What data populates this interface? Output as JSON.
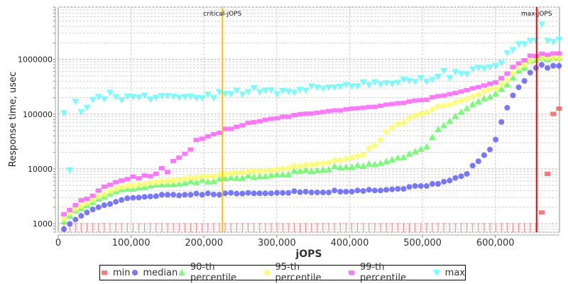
{
  "chart_data": {
    "type": "scatter",
    "xlabel": "jOPS",
    "ylabel": "Response time, usec",
    "yscale": "log",
    "xlim": [
      0,
      688000
    ],
    "ylim": [
      700,
      9000000
    ],
    "x_ticks": [
      0,
      100000,
      200000,
      300000,
      400000,
      500000,
      600000
    ],
    "x_tick_labels": [
      "0",
      "100,000",
      "200,000",
      "300,000",
      "400,000",
      "500,000",
      "600,000"
    ],
    "y_ticks": [
      1000,
      10000,
      100000,
      1000000
    ],
    "y_tick_labels": [
      "1000",
      "10000",
      "100000",
      "1000000"
    ],
    "grid": true,
    "legend_position": "bottom",
    "annotations": [
      {
        "label": "critical-jOPS",
        "x": 225400,
        "color": "#ffc000"
      },
      {
        "label": "max-jOPS",
        "x": 656600,
        "color": "#ff0000"
      }
    ],
    "x": [
      7900,
      15800,
      23700,
      31600,
      39500,
      47400,
      55300,
      63200,
      71100,
      79000,
      86900,
      94800,
      102700,
      110600,
      118500,
      126400,
      134300,
      142200,
      150100,
      158000,
      165900,
      173800,
      181700,
      189600,
      197500,
      205400,
      213300,
      221200,
      229100,
      237000,
      244900,
      252800,
      260700,
      268600,
      276500,
      284400,
      292300,
      300200,
      308100,
      316000,
      323900,
      331800,
      339700,
      347600,
      355500,
      363400,
      371300,
      379200,
      387100,
      395000,
      402900,
      410800,
      418700,
      426600,
      434500,
      442400,
      450300,
      458200,
      466100,
      474000,
      481900,
      489800,
      497700,
      505600,
      513500,
      521400,
      529300,
      537200,
      545100,
      553000,
      560900,
      568800,
      576700,
      584600,
      592500,
      600400,
      608300,
      616200,
      624100,
      632000,
      639900,
      647800,
      655700,
      663600,
      671500,
      679400,
      687300
    ],
    "series": [
      {
        "name": "min",
        "color": "#ff5555",
        "marker": "square",
        "note_below_axis": "values below axis range drawn as ticks",
        "values": [
          null,
          null,
          null,
          null,
          null,
          null,
          null,
          null,
          null,
          null,
          null,
          null,
          null,
          null,
          null,
          null,
          null,
          null,
          null,
          null,
          null,
          null,
          null,
          null,
          null,
          null,
          null,
          null,
          null,
          null,
          null,
          null,
          null,
          null,
          null,
          null,
          null,
          null,
          null,
          null,
          null,
          null,
          null,
          null,
          null,
          null,
          null,
          null,
          null,
          null,
          null,
          null,
          null,
          null,
          null,
          null,
          null,
          null,
          null,
          null,
          null,
          null,
          null,
          null,
          null,
          null,
          null,
          null,
          null,
          null,
          null,
          null,
          null,
          null,
          null,
          null,
          null,
          null,
          null,
          null,
          null,
          null,
          null,
          1600,
          8100,
          101000,
          126000
        ]
      },
      {
        "name": "median",
        "color": "#5555ff",
        "marker": "circle",
        "values": [
          794,
          990,
          1190,
          1390,
          1600,
          1820,
          1990,
          2180,
          2290,
          2510,
          2710,
          2910,
          2970,
          3000,
          3090,
          3140,
          3180,
          3380,
          3380,
          3380,
          3280,
          3380,
          3380,
          3540,
          3380,
          3580,
          3420,
          3380,
          3580,
          3650,
          3540,
          3540,
          3650,
          3580,
          3580,
          3580,
          3580,
          3650,
          3650,
          3650,
          3920,
          3760,
          3840,
          3720,
          3720,
          3720,
          3720,
          4040,
          3840,
          3840,
          3840,
          4040,
          3960,
          4160,
          4040,
          4040,
          4160,
          4240,
          4330,
          4330,
          4700,
          4880,
          4880,
          4880,
          5330,
          5330,
          5840,
          6140,
          6850,
          7350,
          8110,
          11500,
          13800,
          17800,
          22600,
          34400,
          71900,
          131000,
          220000,
          309000,
          404000,
          572000,
          698000,
          795000,
          698000,
          764000,
          760000
        ]
      },
      {
        "name": "90-th percentile",
        "color": "#55ff55",
        "marker": "triangle-up",
        "values": [
          1100,
          1390,
          1730,
          1910,
          2180,
          2480,
          2850,
          3140,
          3540,
          3920,
          4240,
          4330,
          4330,
          4590,
          4700,
          4920,
          5180,
          5180,
          5280,
          5280,
          5380,
          5600,
          6000,
          5720,
          6330,
          5840,
          6000,
          6640,
          6780,
          6980,
          6850,
          6850,
          7570,
          7130,
          7350,
          7350,
          7710,
          7940,
          7940,
          7940,
          9220,
          9220,
          9600,
          9140,
          9400,
          9600,
          9800,
          11200,
          10600,
          10900,
          10900,
          11700,
          11300,
          12400,
          12200,
          12700,
          13800,
          14800,
          16000,
          16300,
          18900,
          20900,
          23100,
          25500,
          38000,
          52800,
          62500,
          74800,
          91400,
          110000,
          128000,
          152000,
          170000,
          193000,
          207000,
          236000,
          288000,
          349000,
          469000,
          620000,
          713000,
          942000,
          980000,
          1070000,
          1000000,
          1070000,
          1070000
        ]
      },
      {
        "name": "95-th percentile",
        "color": "#ffff55",
        "marker": "diamond",
        "values": [
          1240,
          1570,
          1870,
          2110,
          2400,
          2770,
          3140,
          3470,
          3920,
          4330,
          4700,
          4920,
          4920,
          5180,
          5330,
          5610,
          5720,
          6000,
          6000,
          6200,
          6330,
          6640,
          6980,
          6850,
          7200,
          7200,
          7200,
          7940,
          8110,
          8280,
          8530,
          8530,
          8950,
          8950,
          9140,
          9220,
          9400,
          9900,
          10100,
          10400,
          11300,
          11300,
          11900,
          11900,
          12400,
          12700,
          13100,
          14300,
          14300,
          15200,
          16000,
          17100,
          18000,
          23800,
          26800,
          33800,
          47400,
          56700,
          65200,
          70400,
          84300,
          93300,
          101000,
          108000,
          123000,
          139000,
          143000,
          149000,
          163000,
          177000,
          191000,
          211000,
          229000,
          261000,
          285000,
          294000,
          349000,
          416000,
          561000,
          713000,
          803000,
          942000,
          1070000,
          1070000,
          1070000,
          1070000,
          1070000
        ]
      },
      {
        "name": "99-th percentile",
        "color": "#ff55ff",
        "marker": "square",
        "values": [
          1490,
          1780,
          2180,
          2680,
          2850,
          3240,
          4040,
          4730,
          5130,
          5720,
          6140,
          6520,
          7200,
          6720,
          7570,
          7350,
          8110,
          10300,
          8790,
          13900,
          16100,
          18900,
          22600,
          33800,
          35500,
          39300,
          42900,
          45500,
          53800,
          53800,
          58900,
          62500,
          69200,
          71300,
          74100,
          78700,
          81800,
          84300,
          89600,
          89600,
          96200,
          99100,
          102000,
          103000,
          106000,
          110000,
          114000,
          117000,
          117000,
          123000,
          126000,
          128000,
          131000,
          135000,
          136000,
          142000,
          149000,
          153000,
          158000,
          160000,
          170000,
          177000,
          180000,
          183000,
          203000,
          213000,
          219000,
          233000,
          243000,
          258000,
          274000,
          296000,
          312000,
          334000,
          359000,
          381000,
          455000,
          550000,
          726000,
          843000,
          961000,
          1170000,
          1150000,
          1270000,
          1210000,
          1280000,
          1280000
        ]
      },
      {
        "name": "max",
        "color": "#55ffff",
        "marker": "triangle-down",
        "values": [
          105000,
          9500,
          170000,
          110000,
          132000,
          183000,
          207000,
          187000,
          248000,
          207000,
          182000,
          211000,
          207000,
          203000,
          219000,
          185000,
          201000,
          216000,
          216000,
          211000,
          201000,
          207000,
          211000,
          197000,
          197000,
          229000,
          197000,
          253000,
          236000,
          233000,
          271000,
          229000,
          253000,
          300000,
          253000,
          271000,
          275000,
          233000,
          266000,
          258000,
          248000,
          279000,
          271000,
          324000,
          309000,
          294000,
          309000,
          309000,
          318000,
          341000,
          324000,
          324000,
          384000,
          341000,
          384000,
          349000,
          370000,
          359000,
          376000,
          429000,
          407000,
          392000,
          459000,
          395000,
          424000,
          483000,
          620000,
          459000,
          589000,
          550000,
          534000,
          664000,
          705000,
          684000,
          719000,
          760000,
          861000,
          1310000,
          1490000,
          1890000,
          1890000,
          2200000,
          2200000,
          4330000,
          2200000,
          2090000,
          2310000
        ]
      }
    ]
  }
}
